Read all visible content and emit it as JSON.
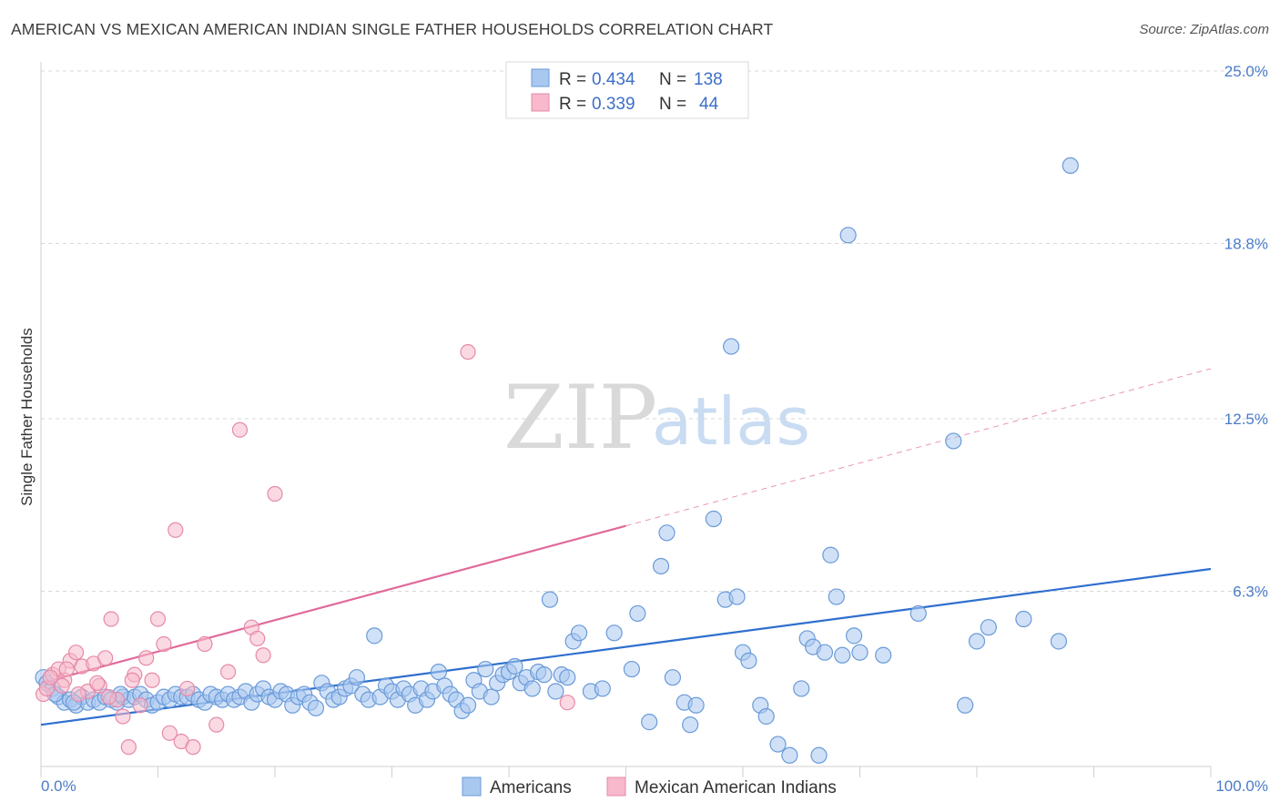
{
  "title": "AMERICAN VS MEXICAN AMERICAN INDIAN SINGLE FATHER HOUSEHOLDS CORRELATION CHART",
  "source": "Source: ZipAtlas.com",
  "watermark": {
    "zip": "ZIP",
    "atlas": "atlas"
  },
  "colors": {
    "blue_fill": "#a9c8f0",
    "blue_stroke": "#6a9ad8",
    "blue_line": "#2f6fcf",
    "pink_fill": "#f7b9cb",
    "pink_stroke": "#e58aa8",
    "pink_line": "#e0699a",
    "grid": "#d8d8d8",
    "axis_text": "#4a7cc9"
  },
  "legend": {
    "rows": [
      {
        "r_label": "R =",
        "r_value": "0.434",
        "n_label": "N =",
        "n_value": "138"
      },
      {
        "r_label": "R =",
        "r_value": "0.339",
        "n_label": "N =",
        "n_value": "44"
      }
    ]
  },
  "bottom_legend": [
    "Americans",
    "Mexican American Indians"
  ],
  "chart_data": {
    "type": "scatter",
    "title": "AMERICAN VS MEXICAN AMERICAN INDIAN SINGLE FATHER HOUSEHOLDS CORRELATION CHART",
    "xlabel": "",
    "ylabel": "Single Father Households",
    "x_ticks": [
      "0.0%",
      "100.0%"
    ],
    "y_ticks": [
      "6.3%",
      "12.5%",
      "18.8%",
      "25.0%"
    ],
    "y_tick_values": [
      6.3,
      12.5,
      18.8,
      25.0
    ],
    "xlim": [
      0,
      100
    ],
    "ylim": [
      0,
      25
    ],
    "grid": "horizontal dashed",
    "legend_placement": "top-center",
    "series": [
      {
        "name": "Americans",
        "r": 0.434,
        "n": 138,
        "trend": {
          "x": [
            0,
            100
          ],
          "y": [
            1.5,
            7.1
          ],
          "style": "solid"
        },
        "points": [
          [
            0.2,
            3.2
          ],
          [
            0.5,
            3.0
          ],
          [
            1.0,
            2.8
          ],
          [
            1.5,
            2.5
          ],
          [
            2.0,
            2.3
          ],
          [
            2.5,
            2.4
          ],
          [
            3.0,
            2.2
          ],
          [
            3.5,
            2.5
          ],
          [
            4.0,
            2.3
          ],
          [
            4.5,
            2.4
          ],
          [
            5.0,
            2.3
          ],
          [
            5.5,
            2.5
          ],
          [
            6.0,
            2.4
          ],
          [
            6.5,
            2.3
          ],
          [
            7.0,
            2.5
          ],
          [
            7.5,
            2.4
          ],
          [
            8.0,
            2.5
          ],
          [
            8.5,
            2.6
          ],
          [
            9.0,
            2.4
          ],
          [
            9.5,
            2.2
          ],
          [
            10.0,
            2.3
          ],
          [
            10.5,
            2.5
          ],
          [
            11.0,
            2.4
          ],
          [
            11.5,
            2.6
          ],
          [
            12.0,
            2.5
          ],
          [
            12.5,
            2.5
          ],
          [
            13.0,
            2.6
          ],
          [
            13.5,
            2.4
          ],
          [
            14.0,
            2.3
          ],
          [
            14.5,
            2.6
          ],
          [
            15.0,
            2.5
          ],
          [
            15.5,
            2.4
          ],
          [
            16.0,
            2.6
          ],
          [
            16.5,
            2.4
          ],
          [
            17.0,
            2.5
          ],
          [
            17.5,
            2.7
          ],
          [
            18.0,
            2.3
          ],
          [
            18.5,
            2.6
          ],
          [
            19.0,
            2.8
          ],
          [
            19.5,
            2.5
          ],
          [
            20.0,
            2.4
          ],
          [
            20.5,
            2.7
          ],
          [
            21.0,
            2.6
          ],
          [
            21.5,
            2.2
          ],
          [
            22.0,
            2.5
          ],
          [
            22.5,
            2.6
          ],
          [
            23.0,
            2.3
          ],
          [
            23.5,
            2.1
          ],
          [
            24.0,
            3.0
          ],
          [
            24.5,
            2.7
          ],
          [
            25.0,
            2.4
          ],
          [
            25.5,
            2.5
          ],
          [
            26.0,
            2.8
          ],
          [
            26.5,
            2.9
          ],
          [
            27.0,
            3.2
          ],
          [
            27.5,
            2.6
          ],
          [
            28.0,
            2.4
          ],
          [
            28.5,
            4.7
          ],
          [
            29.0,
            2.5
          ],
          [
            29.5,
            2.9
          ],
          [
            30.0,
            2.7
          ],
          [
            30.5,
            2.4
          ],
          [
            31.0,
            2.8
          ],
          [
            31.5,
            2.6
          ],
          [
            32.0,
            2.2
          ],
          [
            32.5,
            2.8
          ],
          [
            33.0,
            2.4
          ],
          [
            33.5,
            2.7
          ],
          [
            34.0,
            3.4
          ],
          [
            34.5,
            2.9
          ],
          [
            35.0,
            2.6
          ],
          [
            35.5,
            2.4
          ],
          [
            36.0,
            2.0
          ],
          [
            36.5,
            2.2
          ],
          [
            37.0,
            3.1
          ],
          [
            37.5,
            2.7
          ],
          [
            38.0,
            3.5
          ],
          [
            38.5,
            2.5
          ],
          [
            39.0,
            3.0
          ],
          [
            39.5,
            3.3
          ],
          [
            40.0,
            3.4
          ],
          [
            40.5,
            3.6
          ],
          [
            41.0,
            3.0
          ],
          [
            41.5,
            3.2
          ],
          [
            42.0,
            2.8
          ],
          [
            42.5,
            3.4
          ],
          [
            43.0,
            3.3
          ],
          [
            43.5,
            6.0
          ],
          [
            44.0,
            2.7
          ],
          [
            44.5,
            3.3
          ],
          [
            45.0,
            3.2
          ],
          [
            45.5,
            4.5
          ],
          [
            46.0,
            4.8
          ],
          [
            47.0,
            2.7
          ],
          [
            48.0,
            2.8
          ],
          [
            49.0,
            4.8
          ],
          [
            50.5,
            3.5
          ],
          [
            51.0,
            5.5
          ],
          [
            52.0,
            1.6
          ],
          [
            53.0,
            7.2
          ],
          [
            53.5,
            8.4
          ],
          [
            54.0,
            3.2
          ],
          [
            55.0,
            2.3
          ],
          [
            55.5,
            1.5
          ],
          [
            56.0,
            2.2
          ],
          [
            57.5,
            8.9
          ],
          [
            58.5,
            6.0
          ],
          [
            59.0,
            15.1
          ],
          [
            59.5,
            6.1
          ],
          [
            60.0,
            4.1
          ],
          [
            60.5,
            3.8
          ],
          [
            61.5,
            2.2
          ],
          [
            62.0,
            1.8
          ],
          [
            63.0,
            0.8
          ],
          [
            64.0,
            0.4
          ],
          [
            65.0,
            2.8
          ],
          [
            65.5,
            4.6
          ],
          [
            66.0,
            4.3
          ],
          [
            66.5,
            0.4
          ],
          [
            67.0,
            4.1
          ],
          [
            67.5,
            7.6
          ],
          [
            68.0,
            6.1
          ],
          [
            68.5,
            4.0
          ],
          [
            69.0,
            19.1
          ],
          [
            69.5,
            4.7
          ],
          [
            70.0,
            4.1
          ],
          [
            72.0,
            4.0
          ],
          [
            75.0,
            5.5
          ],
          [
            78.0,
            11.7
          ],
          [
            79.0,
            2.2
          ],
          [
            80.0,
            4.5
          ],
          [
            81.0,
            5.0
          ],
          [
            84.0,
            5.3
          ],
          [
            87.0,
            4.5
          ],
          [
            88.0,
            21.6
          ],
          [
            1.2,
            2.6
          ],
          [
            2.8,
            2.3
          ],
          [
            6.8,
            2.6
          ]
        ]
      },
      {
        "name": "Mexican American Indians",
        "r": 0.339,
        "n": 44,
        "trend": {
          "x": [
            0,
            100
          ],
          "y": [
            3.0,
            14.3
          ],
          "style": "solid-to-0.5-then-dashed"
        },
        "points": [
          [
            0.2,
            2.6
          ],
          [
            0.5,
            2.8
          ],
          [
            1.0,
            3.3
          ],
          [
            1.5,
            3.5
          ],
          [
            2.0,
            3.1
          ],
          [
            2.5,
            3.8
          ],
          [
            3.0,
            4.1
          ],
          [
            3.5,
            3.6
          ],
          [
            4.0,
            2.7
          ],
          [
            4.5,
            3.7
          ],
          [
            5.0,
            2.9
          ],
          [
            5.5,
            3.9
          ],
          [
            6.0,
            5.3
          ],
          [
            6.5,
            2.4
          ],
          [
            7.0,
            1.8
          ],
          [
            7.5,
            0.7
          ],
          [
            8.0,
            3.3
          ],
          [
            8.5,
            2.2
          ],
          [
            9.0,
            3.9
          ],
          [
            9.5,
            3.1
          ],
          [
            10.0,
            5.3
          ],
          [
            10.5,
            4.4
          ],
          [
            11.0,
            1.2
          ],
          [
            11.5,
            8.5
          ],
          [
            12.0,
            0.9
          ],
          [
            12.5,
            2.8
          ],
          [
            13.0,
            0.7
          ],
          [
            14.0,
            4.4
          ],
          [
            15.0,
            1.5
          ],
          [
            16.0,
            3.4
          ],
          [
            17.0,
            12.1
          ],
          [
            18.0,
            5.0
          ],
          [
            18.5,
            4.6
          ],
          [
            19.0,
            4.0
          ],
          [
            20.0,
            9.8
          ],
          [
            36.5,
            14.9
          ],
          [
            45.0,
            2.3
          ],
          [
            1.8,
            2.9
          ],
          [
            2.2,
            3.5
          ],
          [
            0.8,
            3.2
          ],
          [
            3.2,
            2.6
          ],
          [
            4.8,
            3.0
          ],
          [
            5.8,
            2.5
          ],
          [
            7.8,
            3.1
          ]
        ]
      }
    ]
  }
}
